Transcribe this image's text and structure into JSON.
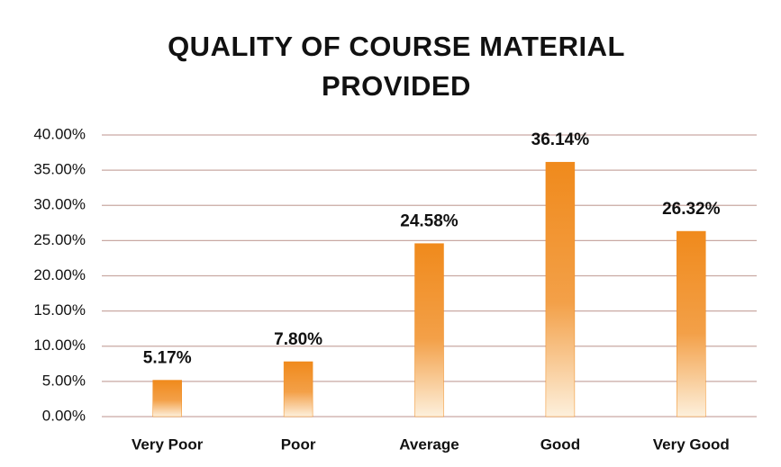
{
  "chart_data": {
    "type": "bar",
    "title": "QUALITY OF COURSE MATERIAL PROVIDED",
    "categories": [
      "Very Poor",
      "Poor",
      "Average",
      "Good",
      "Very Good"
    ],
    "values": [
      5.17,
      7.8,
      24.58,
      36.14,
      26.32
    ],
    "value_labels": [
      "5.17%",
      "7.80%",
      "24.58%",
      "36.14%",
      "26.32%"
    ],
    "color": "#f08a1c",
    "ylim": [
      0,
      40
    ],
    "yticks": [
      {
        "value": 0,
        "label": "0.00%"
      },
      {
        "value": 5,
        "label": "5.00%"
      },
      {
        "value": 10,
        "label": "10.00%"
      },
      {
        "value": 15,
        "label": "15.00%"
      },
      {
        "value": 20,
        "label": "20.00%"
      },
      {
        "value": 25,
        "label": "25.00%"
      },
      {
        "value": 30,
        "label": "30.00%"
      },
      {
        "value": 35,
        "label": "35.00%"
      },
      {
        "value": 40,
        "label": "40.00%"
      }
    ],
    "grid": true
  }
}
